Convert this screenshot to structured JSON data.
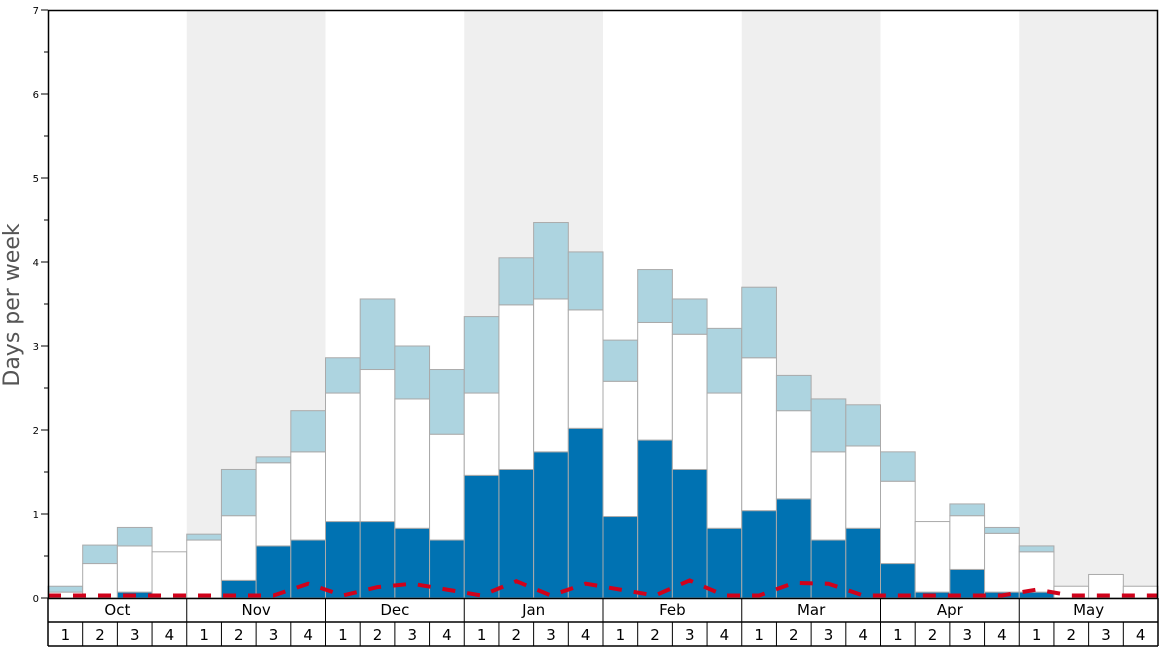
{
  "chart_data": {
    "type": "bar",
    "ylabel": "Days per week",
    "ylim": [
      0,
      7
    ],
    "y_ticks": [
      "0",
      "1",
      "2",
      "3",
      "4",
      "5",
      "6",
      "7"
    ],
    "months": [
      "Oct",
      "Nov",
      "Dec",
      "Jan",
      "Feb",
      "Mar",
      "Apr",
      "May"
    ],
    "week_labels": [
      "1",
      "2",
      "3",
      "4"
    ],
    "shaded_months": [
      "Nov",
      "Jan",
      "Mar",
      "May"
    ],
    "colors": {
      "lower": "#0072b2",
      "middle": "#ffffff",
      "upper": "#add4e0",
      "dashed": "#d0021b",
      "shade": "#efefef",
      "bar_edge": "#aaaaaa"
    },
    "stacked": true,
    "series": [
      {
        "color": "#0072b2",
        "values": [
          0.0,
          0.0,
          0.07,
          0.0,
          0.0,
          0.21,
          0.62,
          0.69,
          0.91,
          0.91,
          0.83,
          0.69,
          1.46,
          1.53,
          1.74,
          2.02,
          0.97,
          1.88,
          1.53,
          0.83,
          1.04,
          1.18,
          0.69,
          0.83,
          0.41,
          0.07,
          0.34,
          0.07,
          0.07,
          0.0,
          0.0,
          0.0
        ]
      },
      {
        "color": "#ffffff",
        "values": [
          0.07,
          0.41,
          0.55,
          0.55,
          0.69,
          0.77,
          0.99,
          1.05,
          1.53,
          1.81,
          1.54,
          1.26,
          0.98,
          1.96,
          1.82,
          1.41,
          1.61,
          1.4,
          1.61,
          1.61,
          1.82,
          1.05,
          1.05,
          0.98,
          0.98,
          0.84,
          0.64,
          0.7,
          0.48,
          0.14,
          0.28,
          0.14
        ]
      },
      {
        "color": "#add4e0",
        "values": [
          0.07,
          0.22,
          0.22,
          0.0,
          0.07,
          0.55,
          0.07,
          0.49,
          0.42,
          0.84,
          0.63,
          0.77,
          0.91,
          0.56,
          0.91,
          0.69,
          0.49,
          0.63,
          0.42,
          0.77,
          0.84,
          0.42,
          0.63,
          0.49,
          0.35,
          0.0,
          0.14,
          0.07,
          0.07,
          0.0,
          0.0,
          0.0
        ]
      }
    ],
    "dashed_line": [
      0.03,
      0.03,
      0.03,
      0.03,
      0.03,
      0.03,
      0.03,
      0.17,
      0.03,
      0.13,
      0.17,
      0.1,
      0.03,
      0.2,
      0.03,
      0.17,
      0.1,
      0.03,
      0.21,
      0.03,
      0.03,
      0.18,
      0.17,
      0.03,
      0.03,
      0.03,
      0.03,
      0.03,
      0.1,
      0.03,
      0.03,
      0.03
    ]
  }
}
